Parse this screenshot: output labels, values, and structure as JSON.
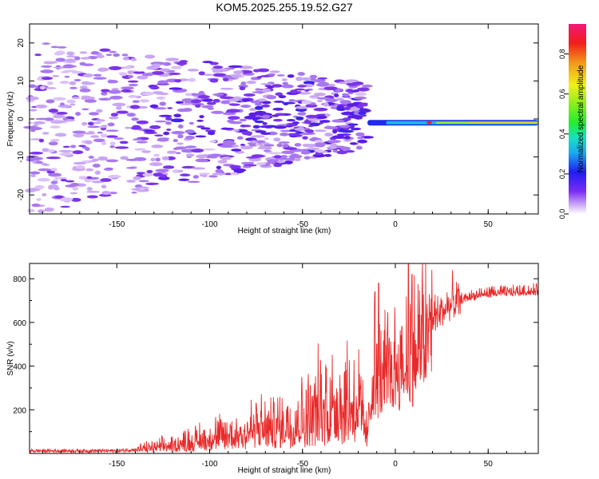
{
  "figure_title": "KOM5.2025.255.19.52.G27",
  "chart_data": [
    {
      "type": "heatmap",
      "xlabel": "Height of straight line (km)",
      "ylabel": "Frequency (Hz)",
      "xlim": [
        -197,
        77
      ],
      "ylim": [
        -25,
        25
      ],
      "xticks": [
        -150,
        -100,
        -50,
        0,
        50
      ],
      "xtick_labels": [
        "-150",
        "-100",
        "-50",
        "0",
        "50"
      ],
      "yticks": [
        -20,
        -10,
        0,
        10,
        20
      ],
      "ytick_labels": [
        "-20",
        "-10",
        "0",
        "10",
        "20"
      ],
      "colorbar": {
        "label": "Normalized spectral amplitude",
        "range": [
          0,
          0.95
        ],
        "ticks": [
          0,
          0.2,
          0.4,
          0.6,
          0.8
        ],
        "tick_labels": [
          "0.0",
          "0.2",
          "0.4",
          "0.6",
          "0.8"
        ]
      },
      "features": [
        {
          "name": "ground echo band",
          "x_range": [
            -15,
            77
          ],
          "freq_hz": -1,
          "amplitude": 0.55
        },
        {
          "name": "scattered region",
          "x_range": [
            -197,
            -15
          ],
          "freq_range": [
            -25,
            25
          ],
          "amplitude": 0.15
        }
      ]
    },
    {
      "type": "line",
      "xlabel": "Height of straight line (km)",
      "ylabel": "SNR (v/v)",
      "xlim": [
        -197,
        77
      ],
      "ylim": [
        0,
        870
      ],
      "xticks": [
        -150,
        -100,
        -50,
        0,
        50
      ],
      "xtick_labels": [
        "-150",
        "-100",
        "-50",
        "0",
        "50"
      ],
      "yticks": [
        200,
        400,
        600,
        800
      ],
      "ytick_labels": [
        "200",
        "400",
        "600",
        "800"
      ],
      "color": "#e82a2a",
      "series": [
        {
          "name": "SNR",
          "x": [
            -197,
            -170,
            -150,
            -140,
            -130,
            -120,
            -110,
            -100,
            -90,
            -80,
            -75,
            -70,
            -60,
            -50,
            -45,
            -40,
            -35,
            -30,
            -25,
            -20,
            -15,
            -12,
            -10,
            -8,
            -5,
            0,
            5,
            7,
            10,
            15,
            20,
            25,
            30,
            40,
            50,
            60,
            70,
            77
          ],
          "y": [
            12,
            12,
            12,
            18,
            28,
            42,
            58,
            75,
            90,
            110,
            125,
            115,
            145,
            165,
            195,
            220,
            240,
            245,
            255,
            240,
            90,
            380,
            330,
            360,
            390,
            420,
            440,
            470,
            480,
            560,
            620,
            660,
            690,
            720,
            735,
            740,
            745,
            745
          ]
        }
      ],
      "peaks": [
        {
          "x": -75,
          "y": 230
        },
        {
          "x": -9,
          "y": 780
        },
        {
          "x": -11,
          "y": 740
        },
        {
          "x": 7,
          "y": 870
        },
        {
          "x": 9,
          "y": 820
        }
      ]
    }
  ]
}
